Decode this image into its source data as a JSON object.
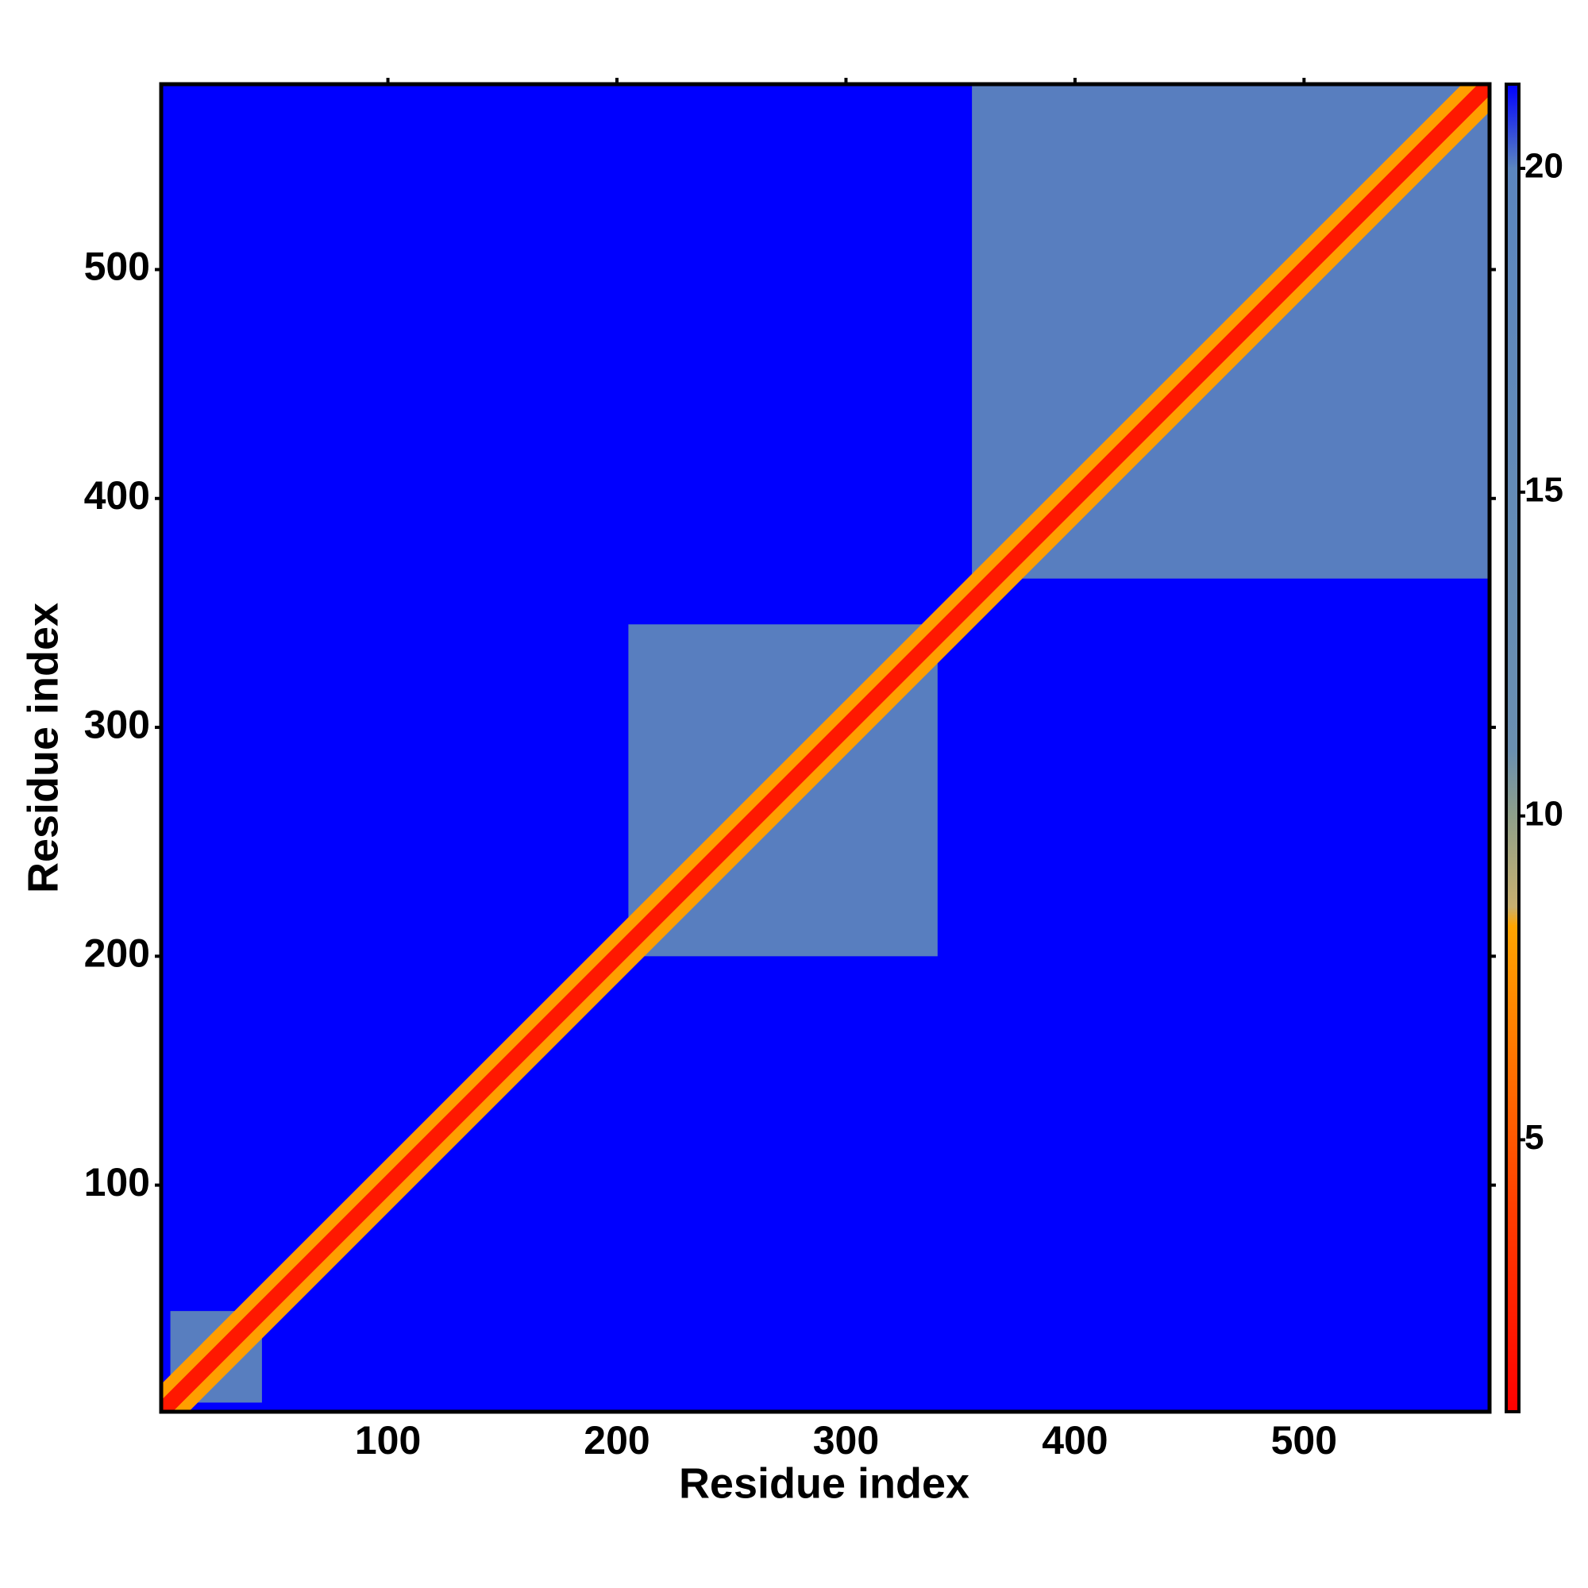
{
  "chart_data": {
    "type": "heatmap",
    "x_label": "Residue index",
    "y_label": "Residue index",
    "xlim": [
      1,
      581
    ],
    "ylim": [
      1,
      581
    ],
    "xticks": [
      100,
      200,
      300,
      400,
      500
    ],
    "yticks": [
      100,
      200,
      300,
      400,
      500
    ],
    "background_value": 21.3,
    "blocks": [
      {
        "x": [
          5,
          45
        ],
        "y": [
          5,
          45
        ],
        "value": 17
      },
      {
        "x": [
          205,
          340
        ],
        "y": [
          200,
          345
        ],
        "value": 17
      },
      {
        "x": [
          355,
          581
        ],
        "y": [
          365,
          581
        ],
        "value": 17
      }
    ],
    "diagonal": [
      {
        "width": 12,
        "value": 8
      },
      {
        "width": 5,
        "value": 2
      }
    ],
    "colorbar": {
      "lim": [
        0.8,
        21.3
      ],
      "ticks": [
        5,
        10,
        15,
        20
      ],
      "scale": [
        {
          "value": 0.8,
          "color": "#ff0000"
        },
        {
          "value": 4,
          "color": "#ff4000"
        },
        {
          "value": 8.3,
          "color": "#ffa500"
        },
        {
          "value": 8.6,
          "color": "#c8b070"
        },
        {
          "value": 10,
          "color": "#8fa08a"
        },
        {
          "value": 11,
          "color": "#6a8fb0"
        },
        {
          "value": 20,
          "color": "#5b86bf"
        },
        {
          "value": 21.3,
          "color": "#0000ff"
        }
      ]
    }
  }
}
